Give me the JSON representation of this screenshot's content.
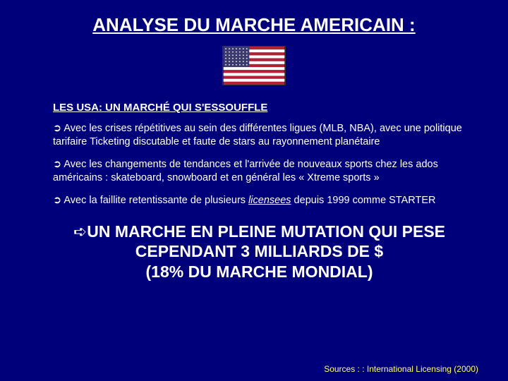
{
  "title": "ANALYSE DU MARCHE AMERICAIN :",
  "flag": {
    "width": 90,
    "height": 56,
    "canton_width": 38,
    "canton_height": 30,
    "red": "#b22234",
    "white": "#ffffff",
    "blue": "#3c3b6e",
    "stripes": 13
  },
  "subtitle": "LES USA: UN MARCHÉ QUI S'ESSOUFFLE",
  "bullets": [
    {
      "arrow": "➲",
      "text": " Avec les crises répétitives au sein des différentes ligues (MLB, NBA), avec une politique tarifaire Ticketing discutable et faute de stars au rayonnement planétaire"
    },
    {
      "arrow": "➲",
      "text": " Avec les changements de tendances et l'arrivée de nouveaux sports chez les ados américains : skateboard, snowboard et en général les « Xtreme sports »"
    },
    {
      "arrow": "➲",
      "pre": " Avec la faillite retentissante de plusieurs ",
      "italic_ul": "licensees",
      "post": " depuis 1999 comme STARTER"
    }
  ],
  "conclusion": {
    "hand": "➪",
    "line1": "UN MARCHE EN PLEINE MUTATION QUI PESE",
    "line2": "CEPENDANT 3 MILLIARDS DE $",
    "line3": "(18% DU MARCHE MONDIAL)"
  },
  "source": "Sources : : International Licensing (2000)",
  "colors": {
    "background": "#00007a",
    "text": "#ffffff",
    "source": "#ffff66"
  }
}
